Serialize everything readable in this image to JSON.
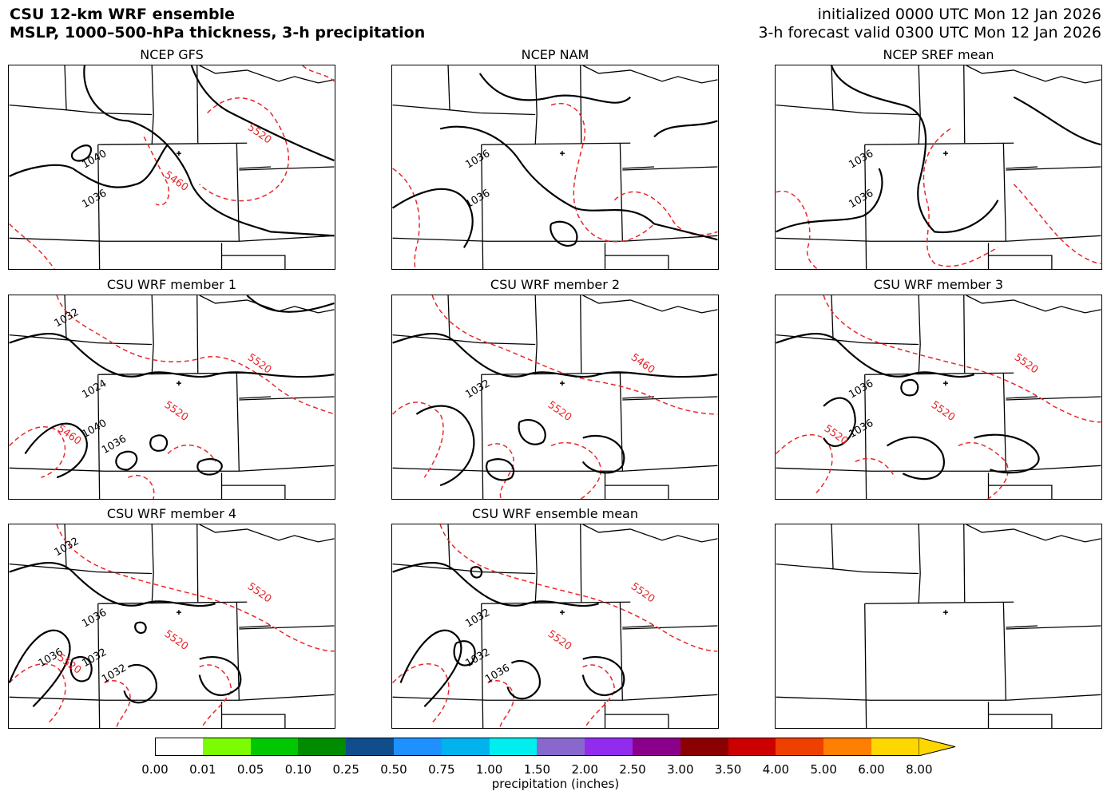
{
  "header": {
    "title_line1": "CSU 12-km WRF ensemble",
    "title_line2": "MSLP, 1000–500-hPa thickness, 3-h precipitation",
    "init_line": "initialized 0000 UTC Mon 12 Jan 2026",
    "valid_line": "3-h forecast valid 0300 UTC Mon 12 Jan 2026"
  },
  "panels": [
    {
      "title": "NCEP GFS",
      "labels": {
        "black": [
          "1040",
          "1036"
        ],
        "red": [
          "5520",
          "5460"
        ]
      }
    },
    {
      "title": "NCEP NAM",
      "labels": {
        "black": [
          "1036",
          "1036"
        ],
        "red": []
      }
    },
    {
      "title": "NCEP SREF mean",
      "labels": {
        "black": [
          "1036",
          "1036"
        ],
        "red": []
      }
    },
    {
      "title": "CSU WRF member 1",
      "labels": {
        "black": [
          "1024",
          "1040",
          "1036",
          "1032"
        ],
        "red": [
          "5520",
          "5520",
          "5460"
        ]
      }
    },
    {
      "title": "CSU WRF member 2",
      "labels": {
        "black": [
          "1032"
        ],
        "red": [
          "5460",
          "5520"
        ]
      }
    },
    {
      "title": "CSU WRF member 3",
      "labels": {
        "black": [
          "1036",
          "1036"
        ],
        "red": [
          "5520",
          "5520",
          "5520"
        ]
      }
    },
    {
      "title": "CSU WRF member 4",
      "labels": {
        "black": [
          "1036",
          "1032",
          "1032",
          "1032",
          "1036"
        ],
        "red": [
          "5520",
          "5520",
          "5520"
        ]
      }
    },
    {
      "title": "CSU WRF ensemble mean",
      "labels": {
        "black": [
          "1032",
          "1032",
          "1036"
        ],
        "red": [
          "5520",
          "5520"
        ]
      }
    },
    {
      "title": "",
      "labels": {
        "black": [],
        "red": []
      }
    }
  ],
  "colorbar": {
    "ticks": [
      "0.00",
      "0.01",
      "0.05",
      "0.10",
      "0.25",
      "0.50",
      "0.75",
      "1.00",
      "1.50",
      "2.00",
      "2.50",
      "3.00",
      "3.50",
      "4.00",
      "5.00",
      "6.00",
      "8.00"
    ],
    "colors": [
      "#ffffff",
      "#7cfc00",
      "#00c800",
      "#008c00",
      "#104e8b",
      "#1e90ff",
      "#00b2ee",
      "#00eeee",
      "#8968cd",
      "#912cee",
      "#8b008b",
      "#8b0000",
      "#cd0000",
      "#ee4000",
      "#ff7f00",
      "#ffd700"
    ],
    "label": "precipitation (inches)"
  },
  "colors": {
    "mslp": "#000000",
    "thickness": "#e8262a",
    "border": "#000000"
  }
}
